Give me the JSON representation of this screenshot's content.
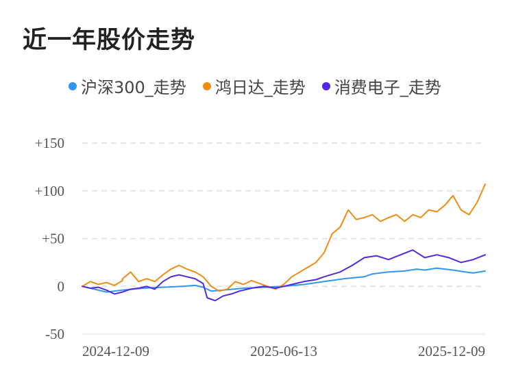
{
  "title": "近一年股价走势",
  "chart_data": {
    "type": "line",
    "title": "近一年股价走势",
    "xlabel": "",
    "ylabel": "",
    "ylim": [
      -50,
      150
    ],
    "yticks": [
      {
        "value": 150,
        "label": "+150"
      },
      {
        "value": 100,
        "label": "+100"
      },
      {
        "value": 50,
        "label": "+50"
      },
      {
        "value": 0,
        "label": "0"
      },
      {
        "value": -50,
        "label": "-50"
      }
    ],
    "xticks": [
      {
        "t": 0,
        "label": "2024-12-09"
      },
      {
        "t": 0.5,
        "label": "2025-06-13"
      },
      {
        "t": 1,
        "label": "2025-12-09"
      }
    ],
    "grid": true,
    "legend_position": "top",
    "series": [
      {
        "name": "沪深300_走势",
        "color": "#2f97f0",
        "points": [
          [
            0,
            0
          ],
          [
            0.03,
            -3
          ],
          [
            0.06,
            -6
          ],
          [
            0.1,
            -4
          ],
          [
            0.15,
            -2
          ],
          [
            0.2,
            -1
          ],
          [
            0.25,
            0
          ],
          [
            0.28,
            1
          ],
          [
            0.3,
            -1
          ],
          [
            0.32,
            -5
          ],
          [
            0.35,
            -4
          ],
          [
            0.4,
            -2
          ],
          [
            0.45,
            -1
          ],
          [
            0.5,
            0
          ],
          [
            0.55,
            2
          ],
          [
            0.6,
            5
          ],
          [
            0.65,
            8
          ],
          [
            0.7,
            10
          ],
          [
            0.72,
            13
          ],
          [
            0.76,
            15
          ],
          [
            0.8,
            16
          ],
          [
            0.83,
            18
          ],
          [
            0.85,
            17
          ],
          [
            0.88,
            19
          ],
          [
            0.9,
            18
          ],
          [
            0.92,
            17
          ],
          [
            0.95,
            15
          ],
          [
            0.97,
            14
          ],
          [
            1,
            16
          ]
        ]
      },
      {
        "name": "鸿日达_走势",
        "color": "#f08c10",
        "points": [
          [
            0,
            0
          ],
          [
            0.02,
            5
          ],
          [
            0.04,
            2
          ],
          [
            0.06,
            4
          ],
          [
            0.08,
            1
          ],
          [
            0.1,
            6
          ],
          [
            0.1,
            8
          ],
          [
            0.12,
            15
          ],
          [
            0.14,
            5
          ],
          [
            0.16,
            8
          ],
          [
            0.18,
            5
          ],
          [
            0.2,
            12
          ],
          [
            0.22,
            18
          ],
          [
            0.24,
            22
          ],
          [
            0.26,
            18
          ],
          [
            0.28,
            15
          ],
          [
            0.3,
            10
          ],
          [
            0.32,
            0
          ],
          [
            0.34,
            -5
          ],
          [
            0.36,
            -3
          ],
          [
            0.38,
            5
          ],
          [
            0.4,
            2
          ],
          [
            0.42,
            6
          ],
          [
            0.44,
            3
          ],
          [
            0.46,
            0
          ],
          [
            0.48,
            -3
          ],
          [
            0.5,
            2
          ],
          [
            0.52,
            10
          ],
          [
            0.54,
            15
          ],
          [
            0.56,
            20
          ],
          [
            0.58,
            25
          ],
          [
            0.6,
            35
          ],
          [
            0.62,
            55
          ],
          [
            0.64,
            62
          ],
          [
            0.66,
            80
          ],
          [
            0.68,
            70
          ],
          [
            0.7,
            72
          ],
          [
            0.72,
            75
          ],
          [
            0.74,
            68
          ],
          [
            0.76,
            72
          ],
          [
            0.78,
            75
          ],
          [
            0.8,
            68
          ],
          [
            0.82,
            75
          ],
          [
            0.84,
            72
          ],
          [
            0.86,
            80
          ],
          [
            0.88,
            78
          ],
          [
            0.9,
            85
          ],
          [
            0.92,
            95
          ],
          [
            0.94,
            80
          ],
          [
            0.96,
            75
          ],
          [
            0.98,
            88
          ],
          [
            1,
            107
          ]
        ]
      },
      {
        "name": "消费电子_走势",
        "color": "#5327e6",
        "points": [
          [
            0,
            0
          ],
          [
            0.02,
            -2
          ],
          [
            0.04,
            -1
          ],
          [
            0.06,
            -4
          ],
          [
            0.08,
            -8
          ],
          [
            0.1,
            -6
          ],
          [
            0.12,
            -3
          ],
          [
            0.14,
            -2
          ],
          [
            0.16,
            0
          ],
          [
            0.18,
            -3
          ],
          [
            0.2,
            5
          ],
          [
            0.22,
            10
          ],
          [
            0.24,
            12
          ],
          [
            0.26,
            10
          ],
          [
            0.28,
            8
          ],
          [
            0.3,
            3
          ],
          [
            0.31,
            -12
          ],
          [
            0.33,
            -15
          ],
          [
            0.35,
            -10
          ],
          [
            0.37,
            -8
          ],
          [
            0.39,
            -5
          ],
          [
            0.42,
            -2
          ],
          [
            0.45,
            0
          ],
          [
            0.48,
            -2
          ],
          [
            0.5,
            0
          ],
          [
            0.52,
            2
          ],
          [
            0.55,
            5
          ],
          [
            0.58,
            7
          ],
          [
            0.6,
            10
          ],
          [
            0.64,
            15
          ],
          [
            0.67,
            22
          ],
          [
            0.7,
            30
          ],
          [
            0.73,
            32
          ],
          [
            0.76,
            28
          ],
          [
            0.79,
            33
          ],
          [
            0.82,
            38
          ],
          [
            0.85,
            30
          ],
          [
            0.88,
            33
          ],
          [
            0.91,
            30
          ],
          [
            0.94,
            25
          ],
          [
            0.97,
            28
          ],
          [
            1,
            33
          ]
        ]
      }
    ]
  }
}
